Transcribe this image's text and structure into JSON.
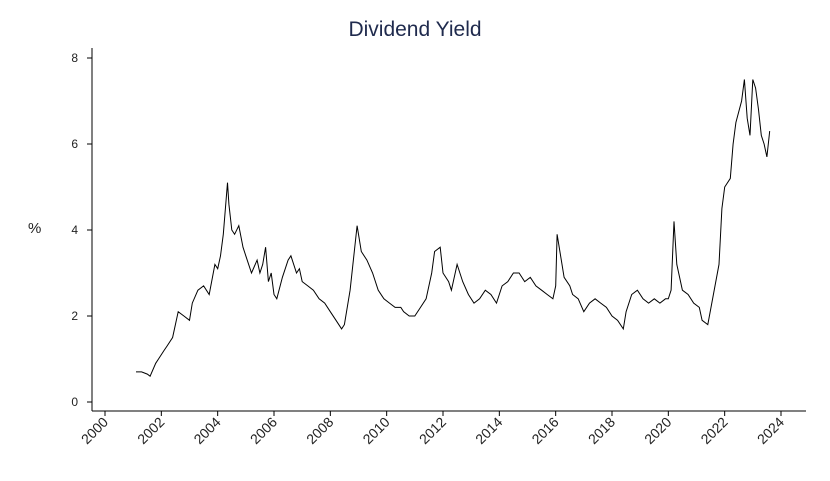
{
  "chart_data": {
    "type": "line",
    "title": "Dividend Yield",
    "xlabel": "",
    "ylabel": "%",
    "xlim": [
      2000,
      2024
    ],
    "ylim": [
      0,
      8
    ],
    "x_ticks": [
      "2000",
      "2002",
      "2004",
      "2006",
      "2008",
      "2010",
      "2012",
      "2014",
      "2016",
      "2018",
      "2020",
      "2022",
      "2024"
    ],
    "y_ticks": [
      "0",
      "2",
      "4",
      "6",
      "8"
    ],
    "grid": false,
    "legend": "none",
    "line_color": "#000000",
    "series": [
      {
        "x": [
          2001.1,
          2001.3,
          2001.5,
          2001.6,
          2001.8,
          2001.9,
          2002.1,
          2002.2,
          2002.4,
          2002.5,
          2002.6,
          2002.8,
          2003.0,
          2003.1,
          2003.3,
          2003.5,
          2003.7,
          2003.9,
          2004.0,
          2004.1,
          2004.2,
          2004.35,
          2004.4,
          2004.5,
          2004.6,
          2004.75,
          2004.9,
          2005.0,
          2005.2,
          2005.4,
          2005.5,
          2005.6,
          2005.7,
          2005.8,
          2005.9,
          2006.0,
          2006.1,
          2006.3,
          2006.5,
          2006.6,
          2006.8,
          2006.9,
          2007.0,
          2007.2,
          2007.4,
          2007.6,
          2007.8,
          2008.0,
          2008.2,
          2008.4,
          2008.5,
          2008.7,
          2008.85,
          2008.95,
          2009.1,
          2009.3,
          2009.5,
          2009.7,
          2009.9,
          2010.1,
          2010.3,
          2010.5,
          2010.6,
          2010.8,
          2011.0,
          2011.2,
          2011.4,
          2011.6,
          2011.7,
          2011.9,
          2012.0,
          2012.2,
          2012.3,
          2012.5,
          2012.7,
          2012.9,
          2013.1,
          2013.3,
          2013.5,
          2013.7,
          2013.9,
          2014.1,
          2014.3,
          2014.5,
          2014.7,
          2014.9,
          2015.1,
          2015.3,
          2015.5,
          2015.7,
          2015.9,
          2016.0,
          2016.05,
          2016.2,
          2016.3,
          2016.5,
          2016.6,
          2016.8,
          2017.0,
          2017.2,
          2017.4,
          2017.6,
          2017.8,
          2018.0,
          2018.2,
          2018.4,
          2018.5,
          2018.7,
          2018.9,
          2019.1,
          2019.3,
          2019.5,
          2019.7,
          2019.9,
          2020.0,
          2020.1,
          2020.2,
          2020.3,
          2020.5,
          2020.7,
          2020.9,
          2021.1,
          2021.2,
          2021.4,
          2021.6,
          2021.8,
          2021.9,
          2022.0,
          2022.2,
          2022.3,
          2022.4,
          2022.6,
          2022.7,
          2022.8,
          2022.9,
          2023.0,
          2023.1,
          2023.2,
          2023.3,
          2023.4,
          2023.5,
          2023.6
        ],
        "values": [
          0.7,
          0.7,
          0.65,
          0.6,
          0.9,
          1.0,
          1.2,
          1.3,
          1.5,
          1.8,
          2.1,
          2.0,
          1.9,
          2.3,
          2.6,
          2.7,
          2.5,
          3.2,
          3.1,
          3.4,
          3.9,
          5.1,
          4.6,
          4.0,
          3.9,
          4.1,
          3.6,
          3.4,
          3.0,
          3.3,
          3.0,
          3.2,
          3.6,
          2.8,
          3.0,
          2.5,
          2.4,
          2.9,
          3.3,
          3.4,
          3.0,
          3.1,
          2.8,
          2.7,
          2.6,
          2.4,
          2.3,
          2.1,
          1.9,
          1.7,
          1.8,
          2.6,
          3.5,
          4.1,
          3.5,
          3.3,
          3.0,
          2.6,
          2.4,
          2.3,
          2.2,
          2.2,
          2.1,
          2.0,
          2.0,
          2.2,
          2.4,
          3.0,
          3.5,
          3.6,
          3.0,
          2.8,
          2.6,
          3.2,
          2.8,
          2.5,
          2.3,
          2.4,
          2.6,
          2.5,
          2.3,
          2.7,
          2.8,
          3.0,
          3.0,
          2.8,
          2.9,
          2.7,
          2.6,
          2.5,
          2.4,
          2.7,
          3.9,
          3.3,
          2.9,
          2.7,
          2.5,
          2.4,
          2.1,
          2.3,
          2.4,
          2.3,
          2.2,
          2.0,
          1.9,
          1.7,
          2.1,
          2.5,
          2.6,
          2.4,
          2.3,
          2.4,
          2.3,
          2.4,
          2.4,
          2.6,
          4.2,
          3.2,
          2.6,
          2.5,
          2.3,
          2.2,
          1.9,
          1.8,
          2.5,
          3.2,
          4.5,
          5.0,
          5.2,
          6.0,
          6.5,
          7.0,
          7.5,
          6.6,
          6.2,
          7.5,
          7.3,
          6.8,
          6.2,
          6.0,
          5.7,
          6.3
        ]
      }
    ]
  }
}
